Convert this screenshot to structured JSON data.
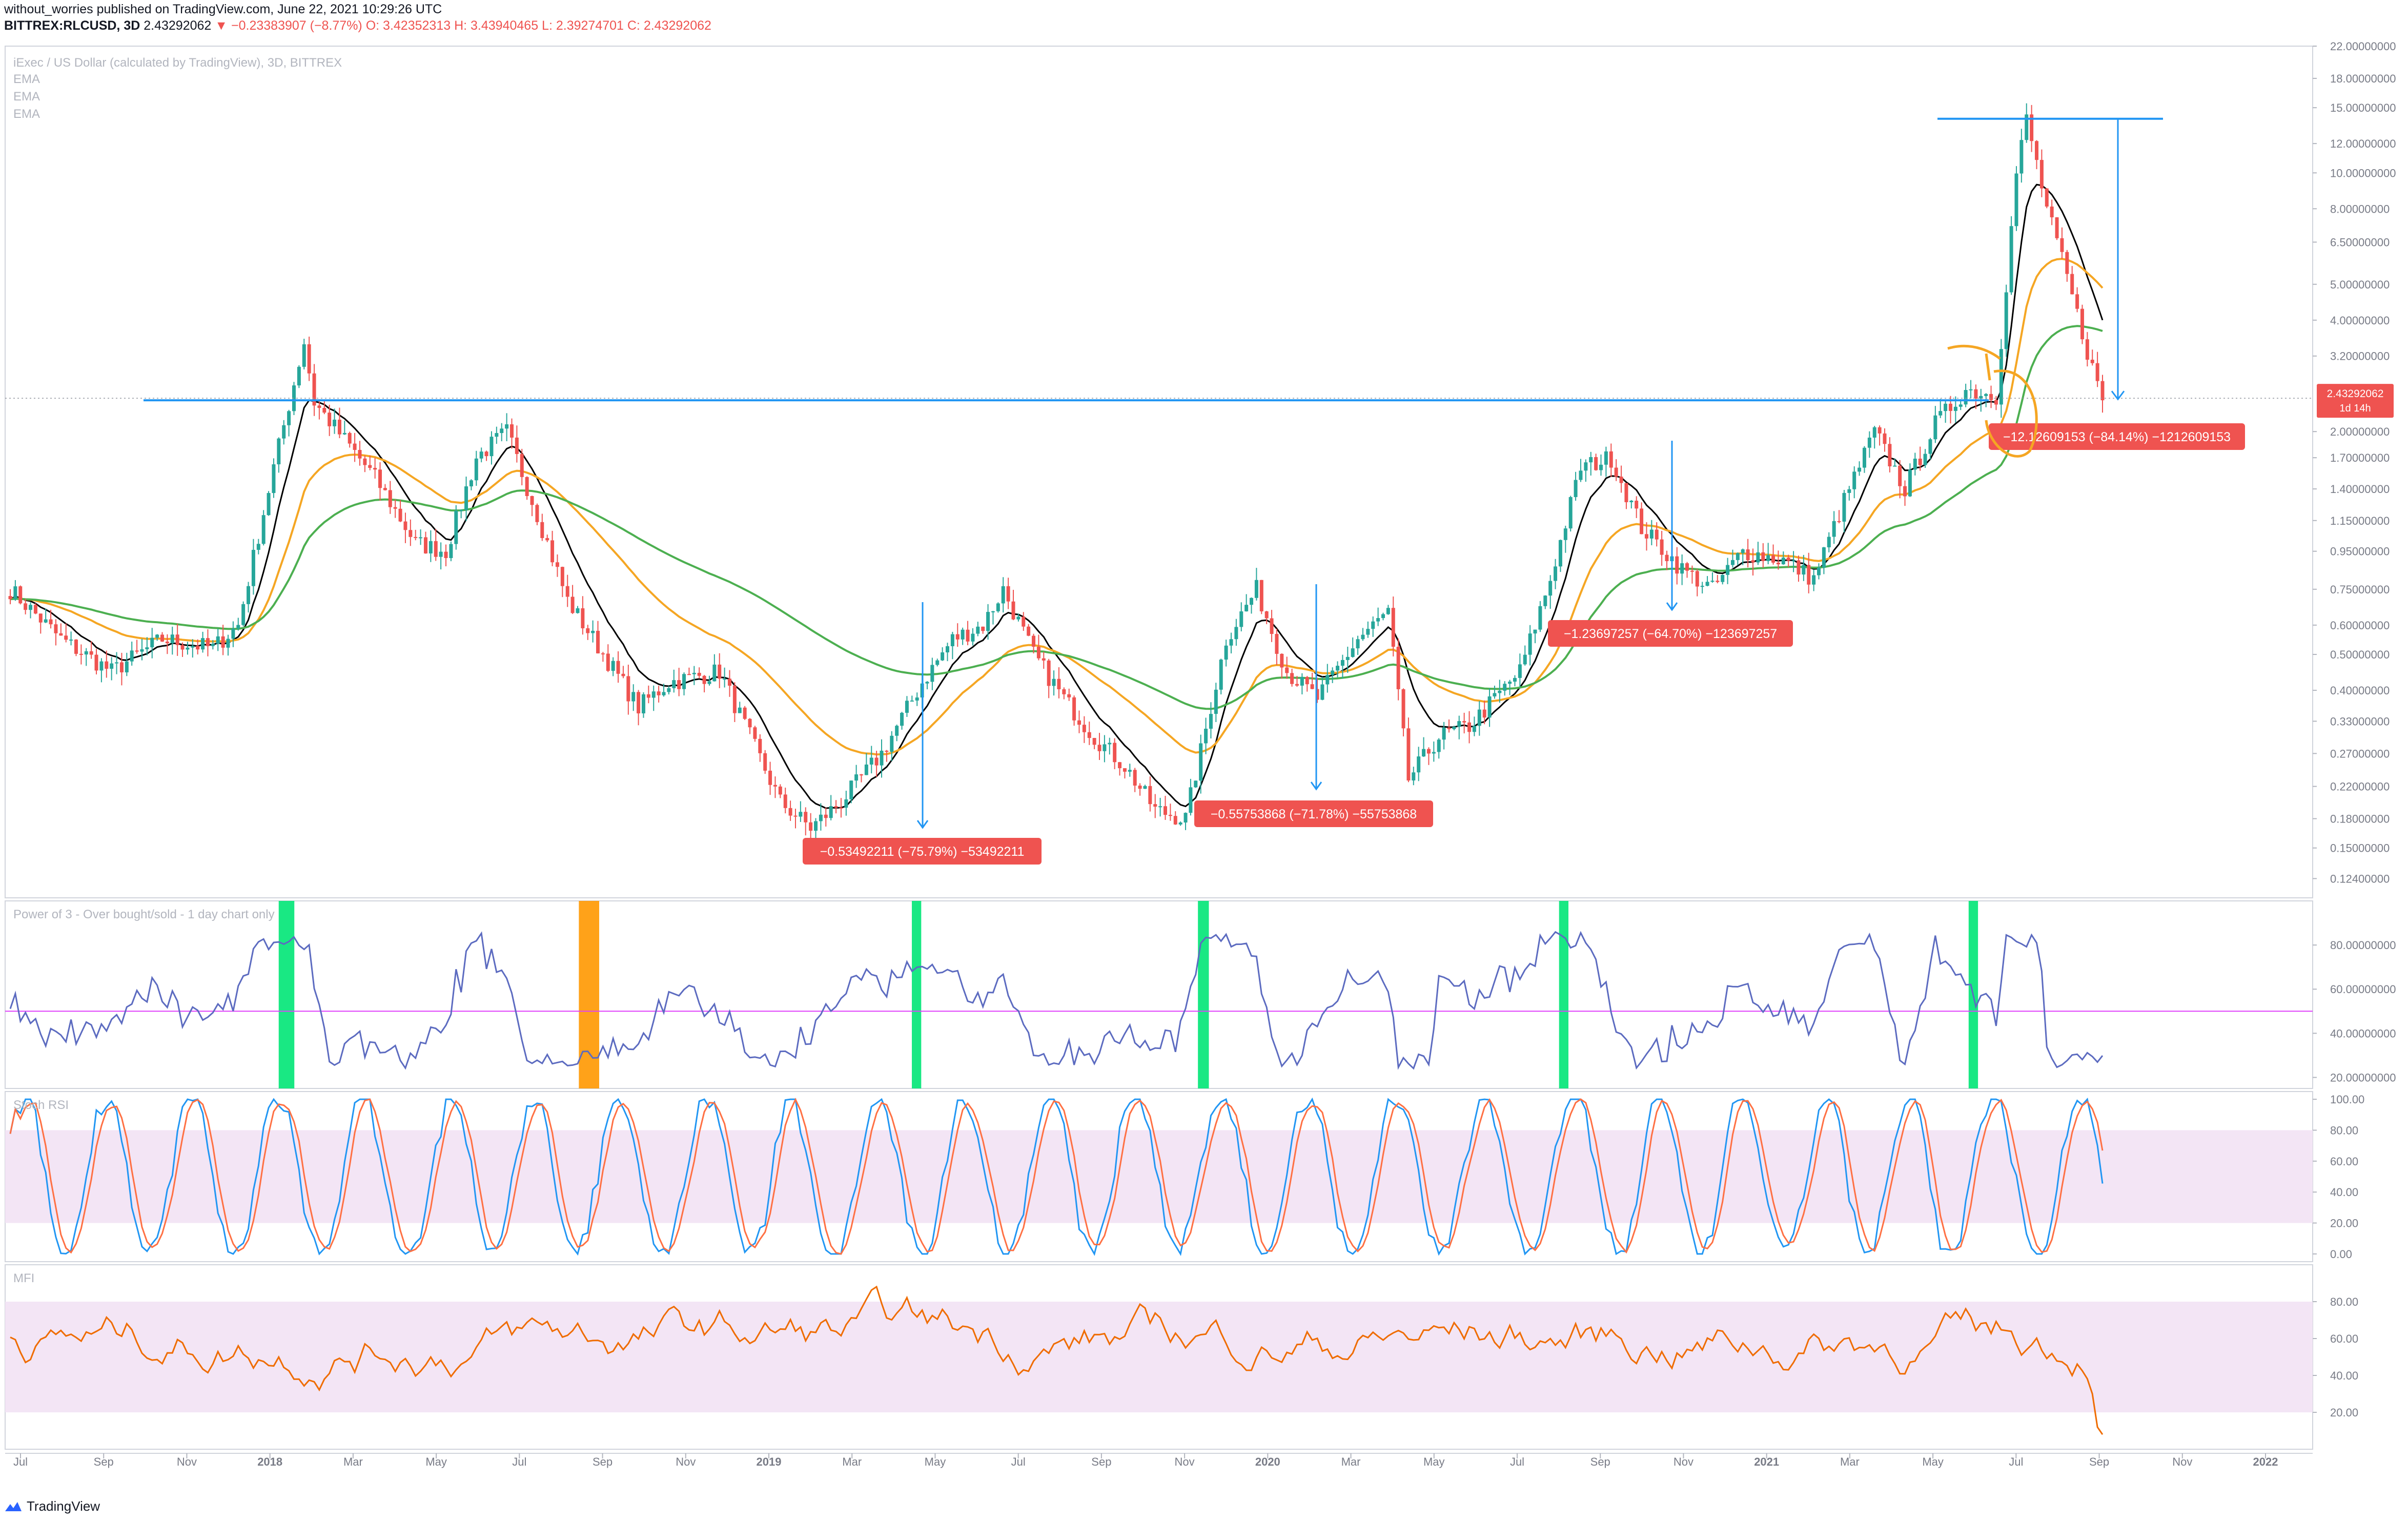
{
  "header": {
    "line1": "without_worries published on TradingView.com, June 22, 2021 10:29:26 UTC",
    "symbol": "BITTREX:RLCUSD, 3D",
    "price": "2.43292062",
    "change": "−0.23383907 (−8.77%)",
    "ohlc": "O: 3.42352313  H: 3.43940465  L: 2.39274701  C: 2.43292062"
  },
  "footer": {
    "brand": "TradingView"
  },
  "colors": {
    "up": "#26a69a",
    "down": "#ef5350",
    "ema_short": "#000000",
    "ema_mid": "#f5a623",
    "ema_long": "#4caf50",
    "bull_band": "#00e676",
    "bear_band": "#ff9800",
    "rsi_line": "#ff9800",
    "stoch_k": "#2196f3",
    "stoch_d": "#ff7043",
    "mfi": "#ef6c00",
    "annotation": "#2196f3",
    "label_bg": "#ef5350",
    "band_fill": "#f3e5f5"
  },
  "chart_data": [
    {
      "type": "candlestick",
      "title": "iExec / US Dollar (calculated by TradingView), 3D, BITTREX",
      "legend": [
        "EMA",
        "EMA",
        "EMA"
      ],
      "scale": "log",
      "ylim": [
        0.11,
        22.0
      ],
      "y_ticks": [
        "22.00000000",
        "18.00000000",
        "15.00000000",
        "12.00000000",
        "10.00000000",
        "8.00000000",
        "6.50000000",
        "5.00000000",
        "4.00000000",
        "3.20000000",
        "2.00000000",
        "1.70000000",
        "1.40000000",
        "1.15000000",
        "0.95000000",
        "0.75000000",
        "0.60000000",
        "0.50000000",
        "0.40000000",
        "0.33000000",
        "0.27000000",
        "0.22000000",
        "0.18000000",
        "0.15000000",
        "0.12400000"
      ],
      "x_ticks": [
        "Jul",
        "Sep",
        "Nov",
        "2018",
        "Mar",
        "May",
        "Jul",
        "Sep",
        "Nov",
        "2019",
        "Mar",
        "May",
        "Jul",
        "Sep",
        "Nov",
        "2020",
        "Mar",
        "May",
        "Jul",
        "Sep",
        "Nov",
        "2021",
        "Mar",
        "May",
        "Jul",
        "Sep",
        "Nov",
        "2022"
      ],
      "price_anchors": [
        [
          0,
          0.75
        ],
        [
          10,
          0.55
        ],
        [
          20,
          0.45
        ],
        [
          30,
          0.55
        ],
        [
          40,
          0.52
        ],
        [
          45,
          0.6
        ],
        [
          52,
          1.6
        ],
        [
          58,
          3.5
        ],
        [
          60,
          2.4
        ],
        [
          66,
          1.9
        ],
        [
          72,
          1.5
        ],
        [
          80,
          1.0
        ],
        [
          86,
          0.95
        ],
        [
          92,
          1.7
        ],
        [
          98,
          2.0
        ],
        [
          104,
          1.2
        ],
        [
          110,
          0.7
        ],
        [
          118,
          0.48
        ],
        [
          124,
          0.36
        ],
        [
          130,
          0.42
        ],
        [
          140,
          0.45
        ],
        [
          146,
          0.3
        ],
        [
          152,
          0.2
        ],
        [
          158,
          0.17
        ],
        [
          164,
          0.2
        ],
        [
          172,
          0.27
        ],
        [
          180,
          0.42
        ],
        [
          186,
          0.55
        ],
        [
          192,
          0.6
        ],
        [
          196,
          0.75
        ],
        [
          202,
          0.5
        ],
        [
          208,
          0.38
        ],
        [
          214,
          0.3
        ],
        [
          220,
          0.25
        ],
        [
          226,
          0.19
        ],
        [
          232,
          0.18
        ],
        [
          240,
          0.55
        ],
        [
          246,
          0.75
        ],
        [
          252,
          0.45
        ],
        [
          258,
          0.38
        ],
        [
          266,
          0.55
        ],
        [
          272,
          0.65
        ],
        [
          276,
          0.23
        ],
        [
          282,
          0.3
        ],
        [
          288,
          0.32
        ],
        [
          298,
          0.45
        ],
        [
          304,
          0.8
        ],
        [
          310,
          1.6
        ],
        [
          316,
          1.7
        ],
        [
          322,
          1.1
        ],
        [
          330,
          0.85
        ],
        [
          336,
          0.75
        ],
        [
          342,
          0.95
        ],
        [
          350,
          0.9
        ],
        [
          356,
          0.8
        ],
        [
          362,
          1.3
        ],
        [
          368,
          2.0
        ],
        [
          374,
          1.4
        ],
        [
          380,
          2.1
        ],
        [
          386,
          2.6
        ],
        [
          392,
          2.5
        ],
        [
          396,
          10.0
        ],
        [
          398,
          14.0
        ],
        [
          402,
          8.0
        ],
        [
          406,
          5.2
        ],
        [
          410,
          3.3
        ],
        [
          413,
          2.43
        ]
      ],
      "candle_count": 414,
      "annotations": [
        {
          "text": "−0.53492211 (−75.79%) −53492211"
        },
        {
          "text": "−0.55753868 (−71.78%) −55753868"
        },
        {
          "text": "−1.23697257 (−64.70%) −123697257"
        },
        {
          "text": "−12.12609153 (−84.14%) −1212609153"
        }
      ],
      "horizontal_level": 2.43,
      "last_price_label": "2.43292062",
      "countdown_label": "1d 14h"
    },
    {
      "type": "line",
      "title": "Power of 3 - Over bought/sold - 1 day chart only",
      "y_ticks": [
        "80.00000000",
        "60.00000000",
        "40.00000000",
        "20.00000000"
      ],
      "ylim": [
        15,
        100
      ],
      "midline": 50
    },
    {
      "type": "line",
      "title": "Stoch RSI",
      "y_ticks": [
        "100.00",
        "80.00",
        "60.00",
        "40.00",
        "20.00",
        "0.00"
      ],
      "ylim": [
        -5,
        105
      ],
      "band": [
        20,
        80
      ]
    },
    {
      "type": "line",
      "title": "MFI",
      "y_ticks": [
        "80.00",
        "60.00",
        "40.00",
        "20.00"
      ],
      "ylim": [
        0,
        100
      ],
      "band": [
        20,
        80
      ]
    }
  ]
}
